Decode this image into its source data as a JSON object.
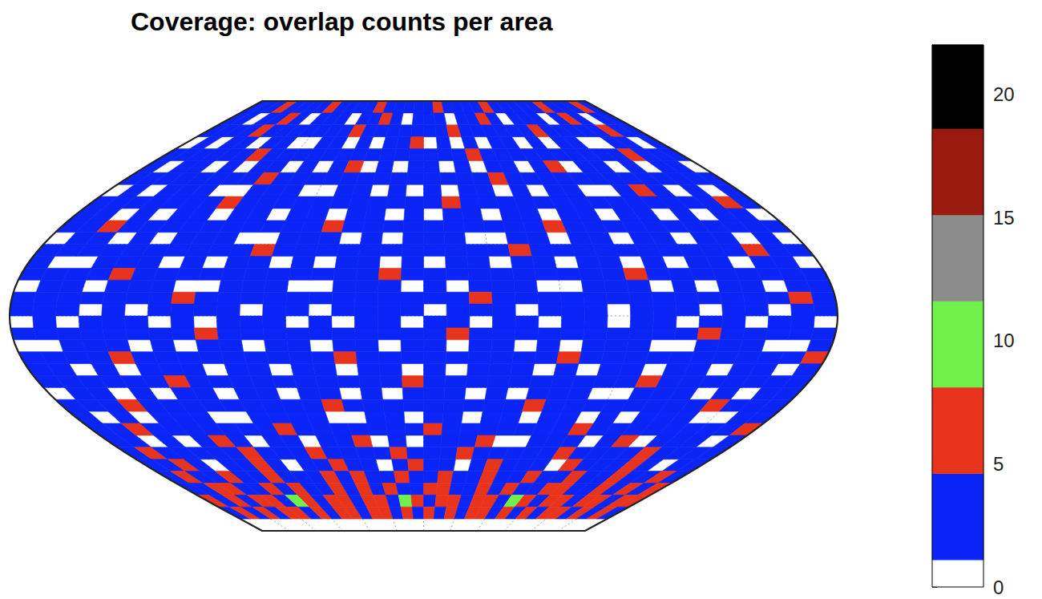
{
  "chart_data": {
    "type": "heatmap",
    "title": "Coverage: overlap counts per area",
    "x": [
      -175,
      -165,
      -155,
      -145,
      -135,
      -125,
      -115,
      -105,
      -95,
      -85,
      -75,
      -65,
      -55,
      -45,
      -35,
      -25,
      -15,
      -5,
      5,
      15,
      25,
      35,
      45,
      55,
      65,
      75,
      85,
      95,
      105,
      115,
      125,
      135,
      145,
      155,
      165,
      175
    ],
    "y": [
      87.5,
      82.5,
      77.5,
      72.5,
      67.5,
      62.5,
      57.5,
      52.5,
      47.5,
      42.5,
      37.5,
      32.5,
      27.5,
      22.5,
      17.5,
      12.5,
      7.5,
      2.5,
      -2.5,
      -7.5,
      -12.5,
      -17.5,
      -22.5,
      -27.5,
      -32.5,
      -37.5,
      -42.5,
      -47.5,
      -52.5,
      -57.5,
      -62.5,
      -67.5,
      -72.5,
      -77.5,
      -82.5,
      -87.5
    ],
    "values": [
      [
        3,
        4,
        3,
        5,
        3,
        2,
        4,
        3,
        6,
        3,
        2,
        3,
        4,
        5,
        3,
        3,
        2,
        4,
        3,
        6,
        3,
        4,
        2,
        3,
        5,
        3,
        4,
        3,
        2,
        3,
        6,
        3,
        4,
        3,
        5,
        3
      ],
      [
        2,
        3,
        0,
        2,
        3,
        5,
        2,
        1,
        3,
        2,
        4,
        0,
        3,
        2,
        6,
        3,
        1,
        2,
        3,
        4,
        0,
        2,
        3,
        5,
        2,
        1,
        3,
        2,
        4,
        0,
        3,
        5,
        2,
        1,
        3,
        2
      ],
      [
        3,
        2,
        3,
        4,
        6,
        3,
        2,
        3,
        2,
        4,
        3,
        3,
        5,
        2,
        3,
        2,
        4,
        3,
        2,
        3,
        6,
        3,
        2,
        4,
        3,
        2,
        3,
        5,
        3,
        2,
        4,
        3,
        2,
        6,
        3,
        4
      ],
      [
        0,
        2,
        1,
        3,
        2,
        0,
        3,
        2,
        1,
        0,
        2,
        3,
        1,
        2,
        0,
        3,
        2,
        5,
        1,
        2,
        0,
        3,
        1,
        2,
        3,
        0,
        2,
        1,
        3,
        2,
        0,
        1,
        3,
        2,
        0,
        2
      ],
      [
        3,
        4,
        2,
        3,
        3,
        2,
        5,
        3,
        2,
        3,
        4,
        2,
        3,
        3,
        2,
        3,
        4,
        3,
        2,
        3,
        3,
        5,
        2,
        3,
        4,
        3,
        2,
        3,
        3,
        4,
        2,
        3,
        5,
        3,
        2,
        3
      ],
      [
        2,
        0,
        3,
        2,
        1,
        3,
        0,
        2,
        3,
        1,
        2,
        0,
        3,
        5,
        1,
        2,
        0,
        3,
        2,
        1,
        3,
        0,
        2,
        3,
        1,
        2,
        6,
        0,
        3,
        2,
        1,
        3,
        0,
        2,
        3,
        1
      ],
      [
        3,
        3,
        2,
        4,
        3,
        2,
        3,
        3,
        6,
        2,
        3,
        4,
        3,
        2,
        3,
        3,
        2,
        3,
        4,
        3,
        2,
        3,
        5,
        3,
        2,
        3,
        4,
        3,
        2,
        3,
        3,
        4,
        2,
        3,
        3,
        2
      ],
      [
        1,
        2,
        0,
        3,
        2,
        3,
        1,
        0,
        2,
        3,
        2,
        1,
        0,
        3,
        2,
        0,
        3,
        1,
        2,
        0,
        3,
        2,
        1,
        3,
        0,
        2,
        3,
        1,
        0,
        2,
        5,
        3,
        1,
        2,
        0,
        3
      ],
      [
        3,
        2,
        3,
        3,
        4,
        2,
        3,
        5,
        3,
        2,
        3,
        3,
        2,
        4,
        3,
        3,
        2,
        3,
        3,
        5,
        2,
        3,
        4,
        3,
        3,
        2,
        3,
        3,
        2,
        4,
        3,
        2,
        3,
        3,
        5,
        3
      ],
      [
        2,
        3,
        1,
        2,
        0,
        3,
        2,
        1,
        3,
        2,
        0,
        2,
        3,
        1,
        2,
        3,
        0,
        2,
        1,
        3,
        2,
        0,
        3,
        2,
        1,
        2,
        3,
        0,
        2,
        3,
        1,
        2,
        0,
        3,
        2,
        1
      ],
      [
        3,
        3,
        5,
        3,
        2,
        3,
        3,
        2,
        4,
        3,
        3,
        2,
        3,
        6,
        3,
        2,
        3,
        3,
        4,
        2,
        3,
        3,
        2,
        3,
        5,
        3,
        2,
        3,
        4,
        3,
        2,
        3,
        3,
        2,
        3,
        4
      ],
      [
        0,
        2,
        3,
        1,
        2,
        0,
        2,
        3,
        2,
        1,
        0,
        3,
        2,
        2,
        1,
        3,
        0,
        2,
        3,
        2,
        1,
        0,
        2,
        3,
        1,
        2,
        2,
        0,
        3,
        2,
        1,
        2,
        3,
        0,
        2,
        1
      ],
      [
        3,
        2,
        3,
        3,
        2,
        4,
        3,
        3,
        2,
        3,
        5,
        3,
        2,
        3,
        3,
        2,
        3,
        4,
        3,
        2,
        3,
        3,
        6,
        2,
        3,
        3,
        2,
        4,
        3,
        3,
        2,
        3,
        3,
        5,
        3,
        2
      ],
      [
        2,
        1,
        0,
        3,
        2,
        2,
        1,
        3,
        0,
        2,
        3,
        1,
        2,
        0,
        2,
        3,
        1,
        2,
        0,
        3,
        2,
        1,
        3,
        2,
        0,
        2,
        3,
        1,
        2,
        0,
        3,
        2,
        1,
        2,
        3,
        0
      ],
      [
        3,
        3,
        2,
        3,
        5,
        3,
        2,
        3,
        3,
        2,
        3,
        4,
        3,
        2,
        3,
        3,
        5,
        3,
        2,
        3,
        4,
        3,
        2,
        3,
        3,
        2,
        3,
        5,
        3,
        2,
        3,
        3,
        4,
        2,
        3,
        3
      ],
      [
        1,
        2,
        3,
        0,
        2,
        3,
        2,
        1,
        0,
        3,
        2,
        2,
        0,
        1,
        3,
        2,
        2,
        0,
        3,
        1,
        2,
        2,
        3,
        0,
        1,
        2,
        3,
        2,
        0,
        2,
        1,
        3,
        2,
        0,
        2,
        3
      ],
      [
        3,
        2,
        3,
        4,
        3,
        3,
        2,
        5,
        3,
        2,
        3,
        3,
        4,
        2,
        3,
        3,
        2,
        3,
        3,
        2,
        5,
        3,
        3,
        2,
        4,
        3,
        3,
        2,
        3,
        3,
        2,
        4,
        3,
        3,
        5,
        2
      ],
      [
        2,
        3,
        2,
        1,
        2,
        0,
        3,
        2,
        3,
        2,
        1,
        3,
        2,
        0,
        2,
        3,
        2,
        3,
        1,
        2,
        3,
        2,
        0,
        2,
        3,
        2,
        1,
        3,
        2,
        3,
        0,
        2,
        3,
        1,
        2,
        3
      ],
      [
        0,
        2,
        1,
        3,
        2,
        2,
        0,
        3,
        1,
        2,
        2,
        3,
        0,
        2,
        1,
        2,
        3,
        0,
        2,
        3,
        1,
        2,
        2,
        0,
        3,
        2,
        1,
        2,
        3,
        0,
        2,
        2,
        1,
        3,
        2,
        0
      ],
      [
        3,
        3,
        2,
        3,
        4,
        3,
        2,
        3,
        5,
        3,
        2,
        3,
        3,
        4,
        2,
        3,
        3,
        2,
        3,
        5,
        3,
        2,
        3,
        3,
        2,
        4,
        3,
        3,
        2,
        3,
        5,
        3,
        2,
        3,
        3,
        4
      ],
      [
        1,
        0,
        2,
        3,
        2,
        1,
        2,
        0,
        3,
        2,
        1,
        2,
        3,
        0,
        2,
        2,
        1,
        3,
        2,
        0,
        2,
        3,
        1,
        2,
        0,
        3,
        2,
        2,
        1,
        0,
        2,
        3,
        2,
        1,
        0,
        2
      ],
      [
        3,
        2,
        3,
        3,
        5,
        3,
        2,
        4,
        3,
        3,
        2,
        3,
        3,
        2,
        5,
        3,
        3,
        2,
        4,
        3,
        3,
        2,
        3,
        3,
        5,
        2,
        3,
        3,
        2,
        4,
        3,
        3,
        2,
        3,
        3,
        5
      ],
      [
        2,
        3,
        0,
        2,
        1,
        3,
        2,
        2,
        0,
        3,
        2,
        1,
        2,
        3,
        0,
        2,
        2,
        1,
        3,
        0,
        2,
        3,
        2,
        1,
        2,
        0,
        3,
        2,
        1,
        3,
        2,
        0,
        2,
        3,
        1,
        2
      ],
      [
        3,
        4,
        3,
        2,
        3,
        3,
        5,
        3,
        2,
        3,
        3,
        2,
        4,
        3,
        3,
        2,
        3,
        5,
        3,
        2,
        3,
        3,
        4,
        2,
        3,
        3,
        2,
        3,
        5,
        3,
        2,
        3,
        3,
        4,
        2,
        3
      ],
      [
        0,
        2,
        2,
        1,
        3,
        0,
        2,
        3,
        1,
        2,
        2,
        0,
        3,
        2,
        1,
        2,
        0,
        3,
        2,
        2,
        1,
        3,
        0,
        2,
        3,
        2,
        1,
        0,
        2,
        3,
        2,
        1,
        3,
        0,
        2,
        2
      ],
      [
        3,
        3,
        2,
        5,
        3,
        2,
        3,
        4,
        3,
        3,
        2,
        3,
        3,
        5,
        2,
        3,
        3,
        2,
        4,
        3,
        3,
        2,
        3,
        6,
        3,
        3,
        2,
        3,
        4,
        3,
        2,
        3,
        5,
        3,
        3,
        2
      ],
      [
        2,
        1,
        3,
        0,
        2,
        2,
        3,
        1,
        0,
        2,
        3,
        2,
        2,
        0,
        1,
        3,
        2,
        0,
        2,
        3,
        1,
        2,
        2,
        0,
        3,
        2,
        1,
        3,
        0,
        2,
        2,
        3,
        1,
        0,
        2,
        3
      ],
      [
        3,
        3,
        5,
        3,
        2,
        3,
        3,
        2,
        4,
        3,
        5,
        3,
        2,
        3,
        3,
        4,
        2,
        3,
        5,
        3,
        3,
        2,
        3,
        3,
        4,
        2,
        5,
        3,
        3,
        2,
        3,
        4,
        3,
        3,
        2,
        5
      ],
      [
        2,
        3,
        1,
        2,
        0,
        3,
        5,
        2,
        1,
        3,
        2,
        0,
        2,
        3,
        5,
        1,
        2,
        0,
        3,
        2,
        2,
        5,
        1,
        0,
        3,
        2,
        2,
        1,
        3,
        5,
        0,
        2,
        2,
        3,
        1,
        2
      ],
      [
        3,
        5,
        3,
        2,
        4,
        3,
        3,
        6,
        2,
        3,
        3,
        5,
        3,
        2,
        4,
        3,
        6,
        3,
        2,
        3,
        5,
        3,
        3,
        2,
        4,
        3,
        5,
        3,
        2,
        3,
        3,
        6,
        2,
        3,
        4,
        3
      ],
      [
        2,
        3,
        5,
        2,
        1,
        3,
        2,
        5,
        3,
        0,
        2,
        3,
        6,
        2,
        3,
        1,
        2,
        5,
        3,
        2,
        0,
        3,
        5,
        2,
        3,
        2,
        1,
        6,
        3,
        2,
        3,
        5,
        2,
        0,
        3,
        2
      ],
      [
        3,
        6,
        3,
        4,
        5,
        3,
        2,
        6,
        3,
        4,
        3,
        5,
        3,
        6,
        2,
        3,
        5,
        4,
        3,
        6,
        3,
        3,
        5,
        2,
        4,
        6,
        3,
        3,
        5,
        3,
        4,
        6,
        3,
        2,
        5,
        3
      ],
      [
        4,
        3,
        6,
        5,
        3,
        4,
        6,
        3,
        5,
        4,
        3,
        6,
        4,
        5,
        3,
        6,
        4,
        3,
        5,
        6,
        3,
        4,
        5,
        3,
        6,
        4,
        3,
        5,
        6,
        4,
        3,
        5,
        4,
        6,
        3,
        5
      ],
      [
        5,
        4,
        6,
        4,
        5,
        6,
        4,
        9,
        5,
        4,
        6,
        5,
        4,
        6,
        5,
        4,
        9,
        6,
        4,
        5,
        6,
        4,
        5,
        6,
        4,
        10,
        5,
        4,
        6,
        5,
        4,
        6,
        5,
        4,
        6,
        5
      ],
      [
        4,
        5,
        4,
        6,
        4,
        5,
        6,
        4,
        5,
        4,
        6,
        5,
        4,
        5,
        6,
        4,
        5,
        4,
        6,
        4,
        5,
        4,
        6,
        5,
        4,
        5,
        4,
        6,
        4,
        5,
        6,
        4,
        5,
        4,
        6,
        4
      ],
      [
        0,
        0,
        0,
        0,
        0,
        0,
        0,
        0,
        0,
        0,
        0,
        0,
        0,
        0,
        0,
        0,
        0,
        0,
        0,
        0,
        0,
        0,
        0,
        0,
        0,
        0,
        0,
        0,
        0,
        0,
        0,
        0,
        0,
        0,
        0,
        0
      ]
    ],
    "xlim": [
      -180,
      180
    ],
    "ylim": [
      -90,
      90
    ],
    "xticks": [
      -180,
      -150,
      -120,
      -90,
      -60,
      -30,
      0,
      30,
      60,
      90,
      120,
      150,
      180
    ],
    "yticks": [
      -90,
      -60,
      -30,
      0,
      30,
      60,
      90
    ],
    "grid": true,
    "tick_labels": false,
    "color_bar": {
      "range": [
        0,
        22
      ],
      "ticks": [
        0,
        5,
        10,
        15,
        20
      ],
      "levels": [
        0,
        1.1,
        4.6,
        8.1,
        11.6,
        15.1,
        18.6,
        22
      ],
      "colors": [
        "#ffffff",
        "#0a25f5",
        "#e8341c",
        "#6ff04a",
        "#8c8c8c",
        "#9a1a10",
        "#000000"
      ]
    }
  }
}
